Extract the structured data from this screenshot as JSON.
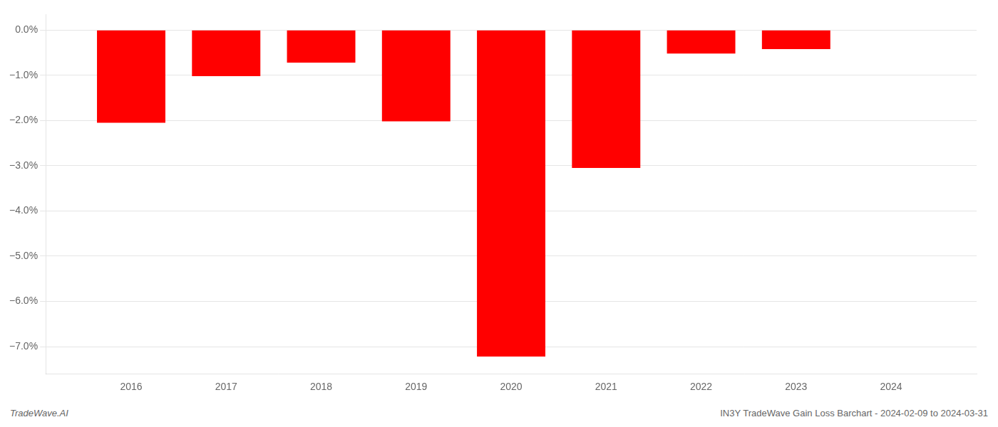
{
  "chart_data": {
    "type": "bar",
    "x": [
      2016,
      2017,
      2018,
      2019,
      2020,
      2021,
      2022,
      2023,
      2024
    ],
    "values": [
      -2.05,
      -1.02,
      -0.72,
      -2.02,
      -7.22,
      -3.05,
      -0.52,
      -0.42,
      0.0
    ],
    "color": "#ff0000",
    "xlim": [
      2015.1,
      2024.9
    ],
    "xticks": [
      2016,
      2017,
      2018,
      2019,
      2020,
      2021,
      2022,
      2023,
      2024
    ],
    "ylim": [
      -7.6,
      0.35
    ],
    "yticks": [
      {
        "value": 0.0,
        "label": "0.0%"
      },
      {
        "value": -1.0,
        "label": "−1.0%"
      },
      {
        "value": -2.0,
        "label": "−2.0%"
      },
      {
        "value": -3.0,
        "label": "−3.0%"
      },
      {
        "value": -4.0,
        "label": "−4.0%"
      },
      {
        "value": -5.0,
        "label": "−5.0%"
      },
      {
        "value": -6.0,
        "label": "−6.0%"
      },
      {
        "value": -7.0,
        "label": "−7.0%"
      }
    ],
    "grid": true,
    "annotations": [
      "TradeWave.AI",
      "IN3Y TradeWave Gain Loss Barchart - 2024-02-09 to 2024-03-31"
    ]
  }
}
